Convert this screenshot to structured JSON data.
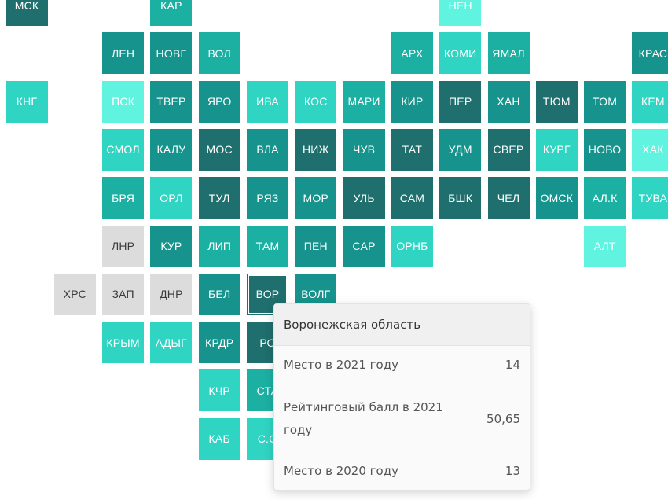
{
  "map": {
    "regions": [
      {
        "code": "МСК",
        "tone": "t1"
      },
      {
        "code": "КАР",
        "tone": "t3"
      },
      {
        "code": "НЕН",
        "tone": "t5"
      },
      {
        "code": "ЛЕН",
        "tone": "t2"
      },
      {
        "code": "НОВГ",
        "tone": "t2"
      },
      {
        "code": "ВОЛ",
        "tone": "t3"
      },
      {
        "code": "АРХ",
        "tone": "t3"
      },
      {
        "code": "КОМИ",
        "tone": "t4"
      },
      {
        "code": "ЯМАЛ",
        "tone": "t3"
      },
      {
        "code": "КРАС",
        "tone": "t2"
      },
      {
        "code": "КНГ",
        "tone": "t4"
      },
      {
        "code": "ПСК",
        "tone": "t5"
      },
      {
        "code": "ТВЕР",
        "tone": "t2"
      },
      {
        "code": "ЯРО",
        "tone": "t2"
      },
      {
        "code": "ИВА",
        "tone": "t4"
      },
      {
        "code": "КОС",
        "tone": "t4"
      },
      {
        "code": "МАРИ",
        "tone": "t3"
      },
      {
        "code": "КИР",
        "tone": "t2"
      },
      {
        "code": "ПЕР",
        "tone": "t1"
      },
      {
        "code": "ХАН",
        "tone": "t2"
      },
      {
        "code": "ТЮМ",
        "tone": "t1"
      },
      {
        "code": "ТОМ",
        "tone": "t2"
      },
      {
        "code": "КЕМ",
        "tone": "t4"
      },
      {
        "code": "СМОЛ",
        "tone": "t4"
      },
      {
        "code": "КАЛУ",
        "tone": "t2"
      },
      {
        "code": "МОС",
        "tone": "t1"
      },
      {
        "code": "ВЛА",
        "tone": "t2"
      },
      {
        "code": "НИЖ",
        "tone": "t1"
      },
      {
        "code": "ЧУВ",
        "tone": "t2"
      },
      {
        "code": "ТАТ",
        "tone": "t1"
      },
      {
        "code": "УДМ",
        "tone": "t2"
      },
      {
        "code": "СВЕР",
        "tone": "t1"
      },
      {
        "code": "КУРГ",
        "tone": "t4"
      },
      {
        "code": "НОВО",
        "tone": "t2"
      },
      {
        "code": "ХАК",
        "tone": "t5"
      },
      {
        "code": "БРЯ",
        "tone": "t3"
      },
      {
        "code": "ОРЛ",
        "tone": "t4"
      },
      {
        "code": "ТУЛ",
        "tone": "t1"
      },
      {
        "code": "РЯЗ",
        "tone": "t2"
      },
      {
        "code": "МОР",
        "tone": "t2"
      },
      {
        "code": "УЛЬ",
        "tone": "t1"
      },
      {
        "code": "САМ",
        "tone": "t1"
      },
      {
        "code": "БШК",
        "tone": "t1"
      },
      {
        "code": "ЧЕЛ",
        "tone": "t1"
      },
      {
        "code": "ОМСК",
        "tone": "t2"
      },
      {
        "code": "АЛ.К",
        "tone": "t3"
      },
      {
        "code": "ТУВА",
        "tone": "t4"
      },
      {
        "code": "ЛНР",
        "tone": "gray"
      },
      {
        "code": "КУР",
        "tone": "t2"
      },
      {
        "code": "ЛИП",
        "tone": "t3"
      },
      {
        "code": "ТАМ",
        "tone": "t3"
      },
      {
        "code": "ПЕН",
        "tone": "t2"
      },
      {
        "code": "САР",
        "tone": "t2"
      },
      {
        "code": "ОРНБ",
        "tone": "t4"
      },
      {
        "code": "АЛТ",
        "tone": "t5"
      },
      {
        "code": "ХРС",
        "tone": "gray"
      },
      {
        "code": "ЗАП",
        "tone": "gray"
      },
      {
        "code": "ДНР",
        "tone": "gray"
      },
      {
        "code": "БЕЛ",
        "tone": "t2"
      },
      {
        "code": "ВОР",
        "tone": "t1",
        "hovered": true
      },
      {
        "code": "ВОЛГ",
        "tone": "t2"
      },
      {
        "code": "КРЫМ",
        "tone": "t4"
      },
      {
        "code": "АДЫГ",
        "tone": "t4"
      },
      {
        "code": "КРДР",
        "tone": "t2"
      },
      {
        "code": "РО",
        "tone": "t1"
      },
      {
        "code": "КЧР",
        "tone": "t4"
      },
      {
        "code": "СТА",
        "tone": "t3"
      },
      {
        "code": "КАБ",
        "tone": "t4"
      },
      {
        "code": "С.О",
        "tone": "t4"
      }
    ]
  },
  "tooltip": {
    "title": "Воронежская область",
    "rows": [
      {
        "label": "Место в 2021 году",
        "value": "14"
      },
      {
        "label": "Рейтинговый балл в 2021 году",
        "value": "50,65"
      },
      {
        "label": "Место в 2020 году",
        "value": "13"
      }
    ]
  }
}
